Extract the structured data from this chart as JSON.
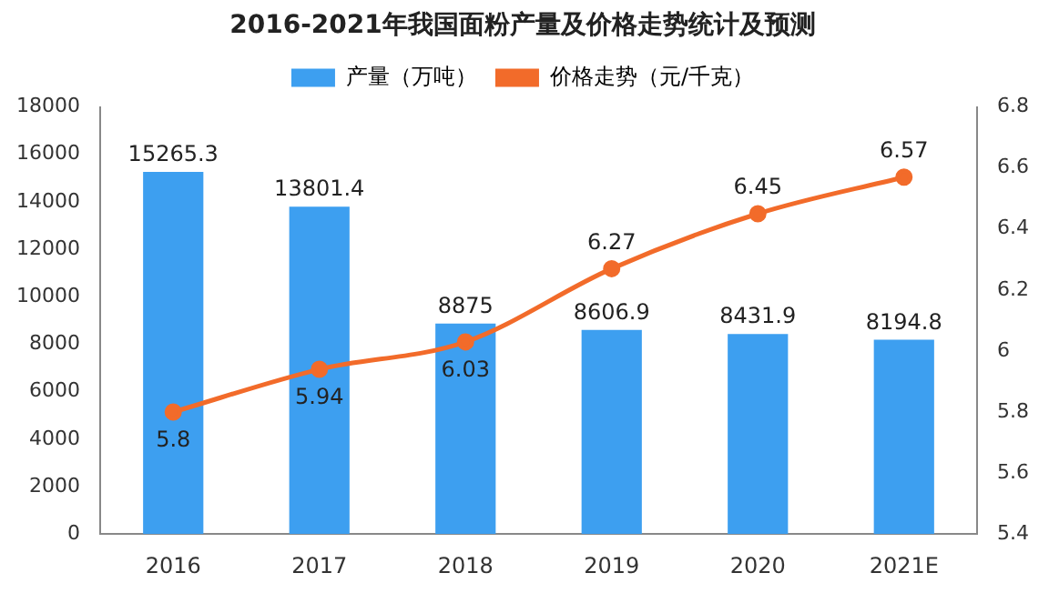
{
  "chart_data": {
    "type": "bar",
    "title": "2016-2021年我国面粉产量及价格走势统计及预测",
    "categories": [
      "2016",
      "2017",
      "2018",
      "2019",
      "2020",
      "2021E"
    ],
    "series": [
      {
        "name": "产量（万吨）",
        "type": "bar",
        "color": "#3d9ff0",
        "values": [
          15265.3,
          13801.4,
          8875,
          8606.9,
          8431.9,
          8194.8
        ]
      },
      {
        "name": "价格走势（元/千克）",
        "type": "line",
        "axis": "y2",
        "color": "#f26b2a",
        "values": [
          5.8,
          5.94,
          6.03,
          6.27,
          6.45,
          6.57
        ]
      }
    ],
    "ylim": [
      0,
      18000
    ],
    "yticks": [
      0,
      2000,
      4000,
      6000,
      8000,
      10000,
      12000,
      14000,
      16000,
      18000
    ],
    "y2lim": [
      5.4,
      6.8
    ],
    "y2ticks": [
      5.4,
      5.6,
      5.8,
      6,
      6.2,
      6.4,
      6.6,
      6.8
    ],
    "data_labels": true,
    "legend": "top",
    "grid": false,
    "marker": "circle",
    "line_style": "solid"
  }
}
